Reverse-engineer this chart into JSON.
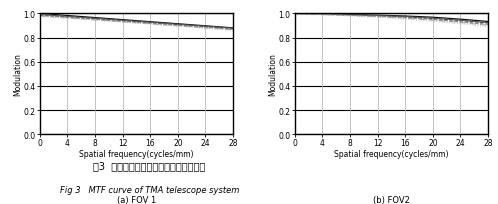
{
  "title_cn": "图3  离轴三反望远系统调制传递函数曲线",
  "title_en": "Fig 3   MTF curve of TMA telescope system",
  "subplot_labels": [
    "(a) FOV 1",
    "(b) FOV2"
  ],
  "xlabel": "Spatial frequency(cycles/mm)",
  "ylabel": "Modulation",
  "xlim": [
    0,
    28
  ],
  "ylim": [
    0,
    1.0
  ],
  "xticks": [
    0,
    4.0,
    8.0,
    12.0,
    16.0,
    20.0,
    24.0,
    28.0
  ],
  "yticks": [
    0,
    0.2,
    0.4,
    0.6,
    0.8,
    1.0
  ],
  "fov1_curves": [
    {
      "x": [
        0,
        4,
        8,
        12,
        16,
        20,
        24,
        28
      ],
      "y": [
        1.0,
        0.982,
        0.965,
        0.948,
        0.931,
        0.914,
        0.897,
        0.88
      ],
      "style": "-",
      "color": "#111111",
      "lw": 0.9
    },
    {
      "x": [
        0,
        4,
        8,
        12,
        16,
        20,
        24,
        28
      ],
      "y": [
        0.985,
        0.97,
        0.954,
        0.938,
        0.922,
        0.906,
        0.89,
        0.874
      ],
      "style": "--",
      "color": "#333333",
      "lw": 0.7
    },
    {
      "x": [
        0,
        4,
        8,
        12,
        16,
        20,
        24,
        28
      ],
      "y": [
        0.99,
        0.975,
        0.959,
        0.943,
        0.927,
        0.91,
        0.894,
        0.878
      ],
      "style": "-",
      "color": "#555555",
      "lw": 0.7
    },
    {
      "x": [
        0,
        4,
        8,
        12,
        16,
        20,
        24,
        28
      ],
      "y": [
        0.983,
        0.967,
        0.951,
        0.934,
        0.918,
        0.901,
        0.885,
        0.869
      ],
      "style": "--",
      "color": "#777777",
      "lw": 0.7
    },
    {
      "x": [
        0,
        4,
        8,
        12,
        16,
        20,
        24,
        28
      ],
      "y": [
        0.978,
        0.963,
        0.947,
        0.93,
        0.914,
        0.897,
        0.881,
        0.864
      ],
      "style": "-.",
      "color": "#999999",
      "lw": 0.7
    },
    {
      "x": [
        0,
        4,
        8,
        12,
        16,
        20,
        24,
        28
      ],
      "y": [
        0.975,
        0.96,
        0.943,
        0.927,
        0.91,
        0.893,
        0.876,
        0.86
      ],
      "style": ":",
      "color": "#bbbbbb",
      "lw": 0.7
    }
  ],
  "fov2_curves": [
    {
      "x": [
        0,
        4,
        8,
        12,
        16,
        20,
        24,
        28
      ],
      "y": [
        1.0,
        0.995,
        0.99,
        0.985,
        0.978,
        0.968,
        0.952,
        0.933
      ],
      "style": "-",
      "color": "#111111",
      "lw": 0.9
    },
    {
      "x": [
        0,
        4,
        8,
        12,
        16,
        20,
        24,
        28
      ],
      "y": [
        0.998,
        0.993,
        0.987,
        0.98,
        0.97,
        0.957,
        0.94,
        0.92
      ],
      "style": "--",
      "color": "#333333",
      "lw": 0.7
    },
    {
      "x": [
        0,
        4,
        8,
        12,
        16,
        20,
        24,
        28
      ],
      "y": [
        0.999,
        0.994,
        0.988,
        0.982,
        0.973,
        0.96,
        0.943,
        0.923
      ],
      "style": "-",
      "color": "#555555",
      "lw": 0.7
    },
    {
      "x": [
        0,
        4,
        8,
        12,
        16,
        20,
        24,
        28
      ],
      "y": [
        0.997,
        0.991,
        0.984,
        0.976,
        0.965,
        0.95,
        0.931,
        0.909
      ],
      "style": "--",
      "color": "#777777",
      "lw": 0.7
    },
    {
      "x": [
        0,
        4,
        8,
        12,
        16,
        20,
        24,
        28
      ],
      "y": [
        0.996,
        0.99,
        0.982,
        0.973,
        0.96,
        0.944,
        0.924,
        0.901
      ],
      "style": "-.",
      "color": "#999999",
      "lw": 0.7
    },
    {
      "x": [
        0,
        4,
        8,
        12,
        16,
        20,
        24,
        28
      ],
      "y": [
        0.994,
        0.987,
        0.978,
        0.967,
        0.953,
        0.935,
        0.913,
        0.889
      ],
      "style": ":",
      "color": "#bbbbbb",
      "lw": 0.7
    }
  ],
  "bg_color": "#ffffff",
  "hgrid_color": "#000000",
  "vgrid_color": "#aaaaaa",
  "hgrid_lw": 0.8,
  "vgrid_lw": 0.5,
  "axis_linewidth": 1.0,
  "tick_labelsize": 5.5,
  "xlabel_fontsize": 5.5,
  "ylabel_fontsize": 5.5,
  "sublabel_fontsize": 6.0,
  "caption_cn_fontsize": 7.0,
  "caption_en_fontsize": 6.0
}
